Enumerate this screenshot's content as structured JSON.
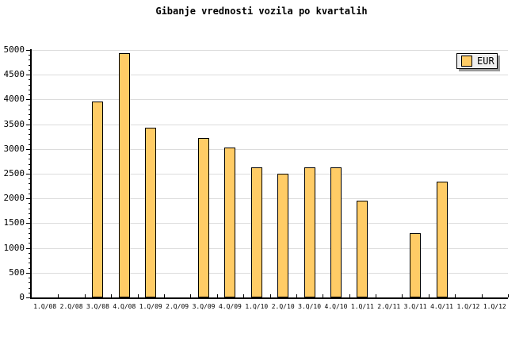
{
  "title": "Gibanje vrednosti vozila po kvartalih",
  "legend": {
    "label": "EUR",
    "swatch_color": "#FFCC66",
    "background": "#EFEFEF",
    "shadow_color": "#9A9A9A"
  },
  "colors": {
    "bar_fill": "#FFCC66",
    "bar_border": "#000000",
    "grid": "#DCDCDC",
    "axis": "#000000",
    "text": "#000000",
    "background": "#FFFFFF"
  },
  "chart_data": {
    "type": "bar",
    "title": "Gibanje vrednosti vozila po kvartalih",
    "xlabel": "",
    "ylabel": "",
    "categories": [
      "1.Q/08",
      "2.Q/08",
      "3.Q/08",
      "4.Q/08",
      "1.Q/09",
      "2.Q/09",
      "3.Q/09",
      "4.Q/09",
      "1.Q/10",
      "2.Q/10",
      "3.Q/10",
      "4.Q/10",
      "1.Q/11",
      "2.Q/11",
      "3.Q/11",
      "4.Q/11",
      "1.Q/12",
      "1.Q/12"
    ],
    "series": [
      {
        "name": "EUR",
        "values": [
          null,
          null,
          3960,
          4940,
          3430,
          null,
          3220,
          3030,
          2630,
          2500,
          2630,
          2630,
          1960,
          null,
          1300,
          2340,
          null,
          null
        ]
      }
    ],
    "ylim": [
      0,
      5000
    ],
    "yticks": [
      0,
      500,
      1000,
      1500,
      2000,
      2500,
      3000,
      3500,
      4000,
      4500,
      5000
    ],
    "ytick_minor_step": 100,
    "grid": true,
    "legend_position": "top-right"
  }
}
